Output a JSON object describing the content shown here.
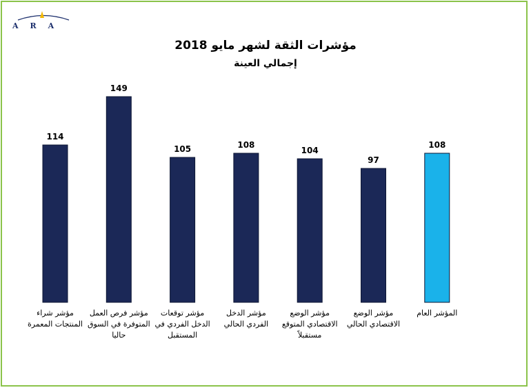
{
  "logo": {
    "text": "ARA",
    "colors": {
      "arc": "#f2b705",
      "text": "#1a2d6b"
    }
  },
  "chart_data": {
    "type": "bar",
    "title": "مؤشرات الثقة لشهر مايو 2018",
    "subtitle": "إجمالي العينة",
    "xlabel": "",
    "ylabel": "",
    "ylim": [
      0,
      160
    ],
    "grid": false,
    "legend": "none",
    "categories": [
      "مؤشر شراء المنتجات المعمرة",
      "مؤشر فرص العمل المتوفرة في السوق حاليا",
      "مؤشر توقعات الدخل الفردي في المستقبل",
      "مؤشر الدخل الفردي الحالي",
      "مؤشر الوضع الاقتصادي المتوقع مستقبلاً",
      "مؤشر الوضع الاقتصادي الحالي",
      "المؤشر العام"
    ],
    "values": [
      114,
      149,
      105,
      108,
      104,
      97,
      108
    ],
    "bar_colors": [
      "#1b2857",
      "#1b2857",
      "#1b2857",
      "#1b2857",
      "#1b2857",
      "#1b2857",
      "#1ab2ea"
    ]
  }
}
